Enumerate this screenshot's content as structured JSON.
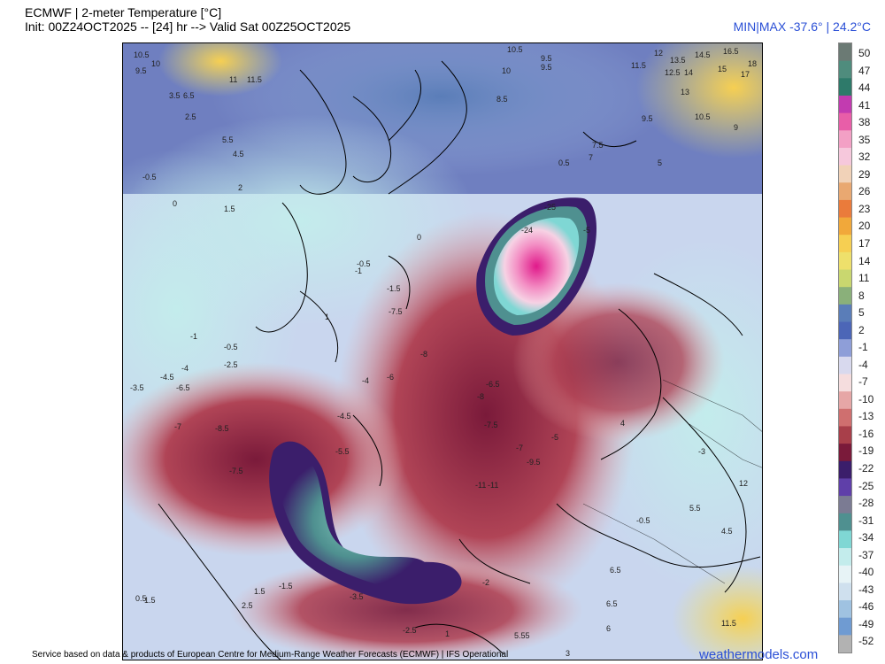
{
  "header": {
    "title": "ECMWF | 2-meter Temperature [°C]",
    "init_line": "Init: 00Z24OCT2025 -- [24] hr --> Valid Sat 00Z25OCT2025",
    "minmax": "MIN|MAX -37.6° | 24.2°C"
  },
  "colorbar": {
    "labels": [
      "50",
      "47",
      "44",
      "41",
      "38",
      "35",
      "32",
      "29",
      "26",
      "23",
      "20",
      "17",
      "14",
      "11",
      "8",
      "5",
      "2",
      "-1",
      "-4",
      "-7",
      "-10",
      "-13",
      "-16",
      "-19",
      "-22",
      "-25",
      "-28",
      "-31",
      "-34",
      "-37",
      "-40",
      "-43",
      "-46",
      "-49",
      "-52"
    ],
    "colors": [
      "#6b7a74",
      "#4f8c7d",
      "#2e7a6a",
      "#c23bb0",
      "#e85ea8",
      "#f3a0c5",
      "#f6c8dc",
      "#f1d2b8",
      "#e9a871",
      "#ea7b3b",
      "#f1a83a",
      "#f6cf52",
      "#eee06b",
      "#c9d76f",
      "#8ab07a",
      "#5a7db8",
      "#4c66b7",
      "#8e9ed8",
      "#d8d9ee",
      "#f5ddde",
      "#e6a6a6",
      "#cf6f6f",
      "#a83f4a",
      "#7a1a3a",
      "#3b1e6b",
      "#5f3fa9",
      "#7b7b93",
      "#4f9090",
      "#7fd7d4",
      "#c3ecec",
      "#e7f3f6",
      "#cfe0ee",
      "#9fc2e1",
      "#6f9bd2",
      "#b2b2b2"
    ]
  },
  "map": {
    "annotations": [
      {
        "t": "10.5"
      },
      {
        "t": "10"
      },
      {
        "t": "9.5"
      },
      {
        "t": "11"
      },
      {
        "t": "11.5"
      },
      {
        "t": "12"
      },
      {
        "t": "13.5"
      },
      {
        "t": "14.5"
      },
      {
        "t": "16.5"
      },
      {
        "t": "18"
      },
      {
        "t": "12.5"
      },
      {
        "t": "14"
      },
      {
        "t": "13"
      },
      {
        "t": "15"
      },
      {
        "t": "17"
      },
      {
        "t": "8.5"
      },
      {
        "t": "3.5"
      },
      {
        "t": "6.5"
      },
      {
        "t": "5.5"
      },
      {
        "t": "4.5"
      },
      {
        "t": "2.5"
      },
      {
        "t": "1.5"
      },
      {
        "t": "-0.5"
      },
      {
        "t": "0"
      },
      {
        "t": "2"
      },
      {
        "t": "1"
      },
      {
        "t": "-1"
      },
      {
        "t": "-1.5"
      },
      {
        "t": "-2"
      },
      {
        "t": "-2.5"
      },
      {
        "t": "-3"
      },
      {
        "t": "-3.5"
      },
      {
        "t": "-4"
      },
      {
        "t": "-4.5"
      },
      {
        "t": "-5"
      },
      {
        "t": "-5.5"
      },
      {
        "t": "-6"
      },
      {
        "t": "-6.5"
      },
      {
        "t": "-7"
      },
      {
        "t": "-7.5"
      },
      {
        "t": "-8"
      },
      {
        "t": "-8.5"
      },
      {
        "t": "-9"
      },
      {
        "t": "-9.5"
      },
      {
        "t": "-11"
      },
      {
        "t": "-24"
      },
      {
        "t": "-25"
      },
      {
        "t": "5"
      },
      {
        "t": "6"
      },
      {
        "t": "7"
      },
      {
        "t": "7.5"
      },
      {
        "t": "6.5"
      },
      {
        "t": "5.55"
      },
      {
        "t": "3"
      },
      {
        "t": "0.5"
      },
      {
        "t": "4"
      },
      {
        "t": "9"
      }
    ]
  },
  "footer": {
    "credit": "Service based on data & products of European Centre for Medium-Range Weather Forecasts (ECMWF) | IFS Operational",
    "brand": "weathermodels.com"
  }
}
